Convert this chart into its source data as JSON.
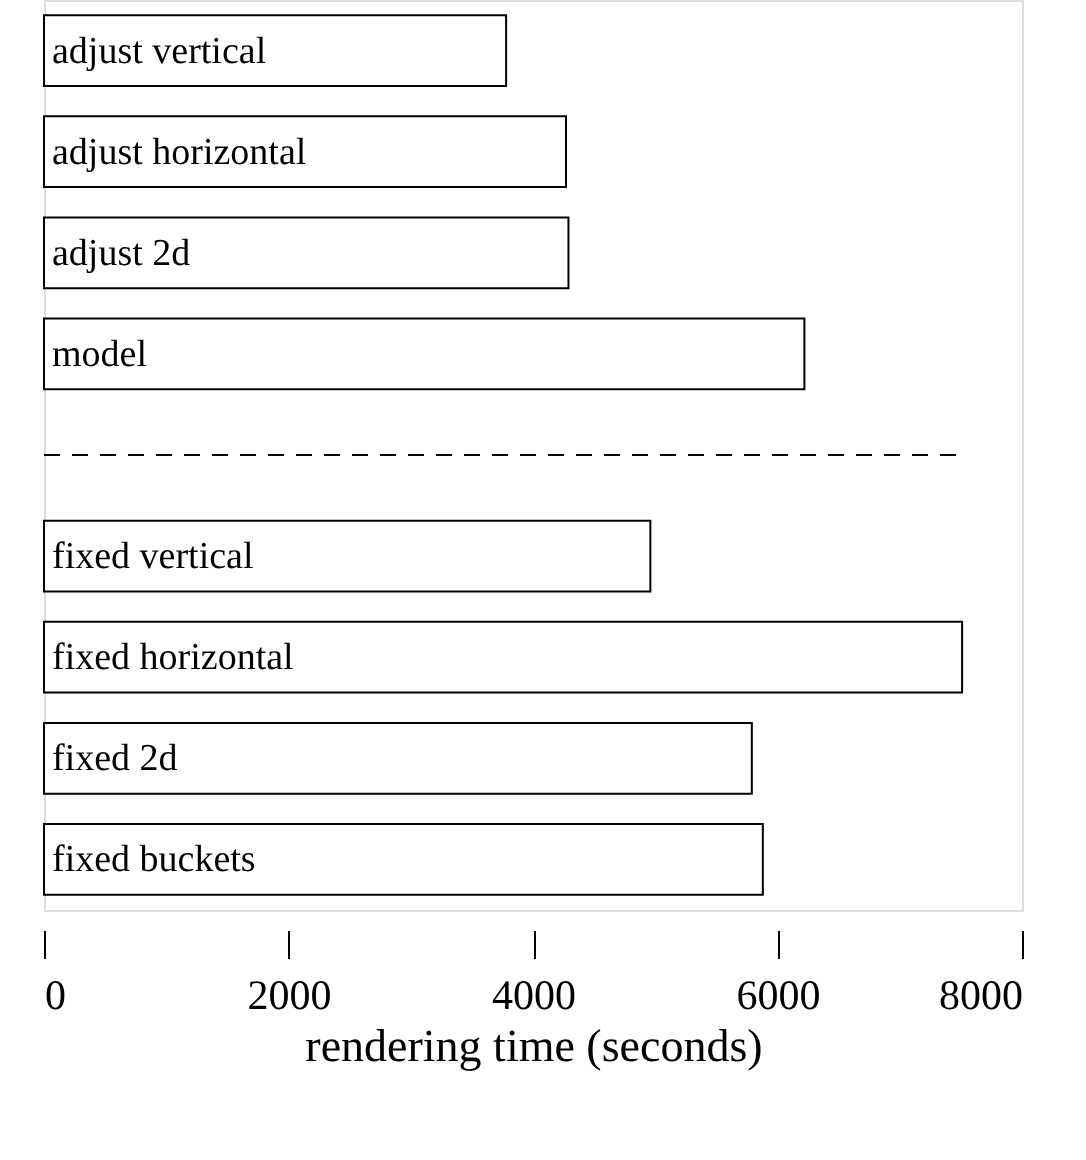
{
  "chart_data": {
    "type": "bar",
    "orientation": "horizontal",
    "xlabel": "rendering time (seconds)",
    "categories": [
      "adjust vertical",
      "adjust horizontal",
      "adjust 2d",
      "model",
      null,
      "fixed vertical",
      "fixed horizontal",
      "fixed 2d",
      "fixed buckets"
    ],
    "values": [
      3780,
      4270,
      4290,
      6220,
      null,
      4960,
      7510,
      5790,
      5880
    ],
    "color": "#ffffff",
    "xlim": [
      0,
      8000
    ],
    "xticks": [
      0,
      2000,
      4000,
      6000,
      8000
    ],
    "tick_labels": "x",
    "grid": false
  }
}
